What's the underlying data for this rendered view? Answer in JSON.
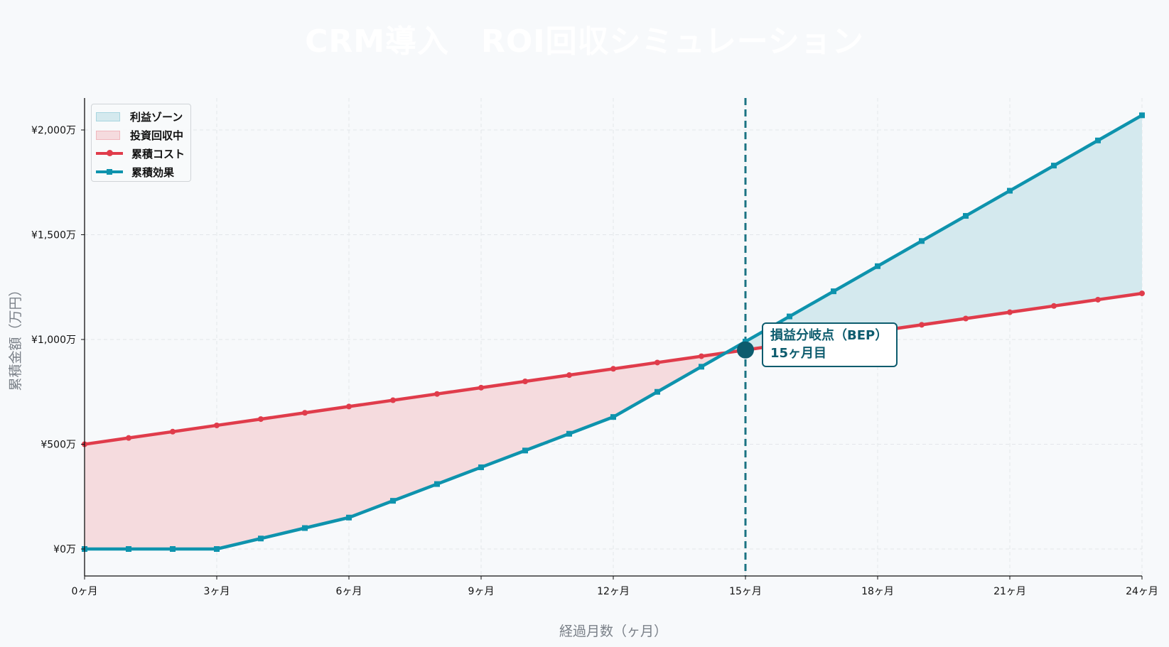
{
  "title": "CRM導入　ROI回収シミュレーション",
  "legend": {
    "items": [
      {
        "label": "利益ゾーン",
        "kind": "fill",
        "color": "#d4e9ee",
        "border": "#a8d6e0"
      },
      {
        "label": "投資回収中",
        "kind": "fill",
        "color": "#f5dbde",
        "border": "#f0b8be"
      },
      {
        "label": "累積コスト",
        "kind": "line",
        "color": "#e03c4b"
      },
      {
        "label": "累積効果",
        "kind": "line",
        "color": "#0e93ad"
      }
    ]
  },
  "annotation": {
    "line1": "損益分岐点（BEP）",
    "line2": "15ヶ月目"
  },
  "colors": {
    "cost": "#e03c4b",
    "effect": "#0e93ad",
    "profit_fill": "#d4e9ee",
    "loss_fill": "#f5dbde",
    "bep": "#0d5c6e",
    "background": "#f7f9fb"
  },
  "chart_data": {
    "type": "line",
    "title": "CRM導入　ROI回収シミュレーション",
    "xlabel": "経過月数（ヶ月）",
    "ylabel": "累積金額（万円）",
    "x": [
      0,
      1,
      2,
      3,
      4,
      5,
      6,
      7,
      8,
      9,
      10,
      11,
      12,
      13,
      14,
      15,
      16,
      17,
      18,
      19,
      20,
      21,
      22,
      23,
      24
    ],
    "xticks": [
      0,
      3,
      6,
      9,
      12,
      15,
      18,
      21,
      24
    ],
    "xtick_labels": [
      "0ヶ月",
      "3ヶ月",
      "6ヶ月",
      "9ヶ月",
      "12ヶ月",
      "15ヶ月",
      "18ヶ月",
      "21ヶ月",
      "24ヶ月"
    ],
    "yticks": [
      0,
      500,
      1000,
      1500,
      2000
    ],
    "ytick_labels": [
      "¥0万",
      "¥500万",
      "¥1,000万",
      "¥1,500万",
      "¥2,000万"
    ],
    "xlim": [
      0,
      24
    ],
    "ylim": [
      -100,
      2175
    ],
    "grid": true,
    "legend_position": "upper left",
    "series": [
      {
        "name": "累積コスト",
        "marker": "circle",
        "values": [
          500,
          530,
          560,
          590,
          620,
          650,
          680,
          710,
          740,
          770,
          800,
          830,
          860,
          890,
          920,
          950,
          980,
          1010,
          1040,
          1070,
          1100,
          1130,
          1160,
          1190,
          1220
        ]
      },
      {
        "name": "累積効果",
        "marker": "square",
        "values": [
          0,
          0,
          0,
          0,
          50,
          100,
          150,
          230,
          310,
          390,
          470,
          550,
          630,
          750,
          870,
          990,
          1110,
          1230,
          1350,
          1470,
          1590,
          1710,
          1830,
          1950,
          2070
        ]
      }
    ],
    "fills": [
      {
        "name": "投資回収中",
        "between": [
          "累積コスト",
          "累積効果"
        ],
        "where": "cost > effect"
      },
      {
        "name": "利益ゾーン",
        "between": [
          "累積効果",
          "累積コスト"
        ],
        "where": "effect >= cost"
      }
    ],
    "annotations": [
      {
        "type": "vline",
        "x": 15,
        "style": "dashed"
      },
      {
        "type": "point",
        "x": 15,
        "y": 950,
        "text": "損益分岐点（BEP）\n15ヶ月目"
      }
    ]
  }
}
